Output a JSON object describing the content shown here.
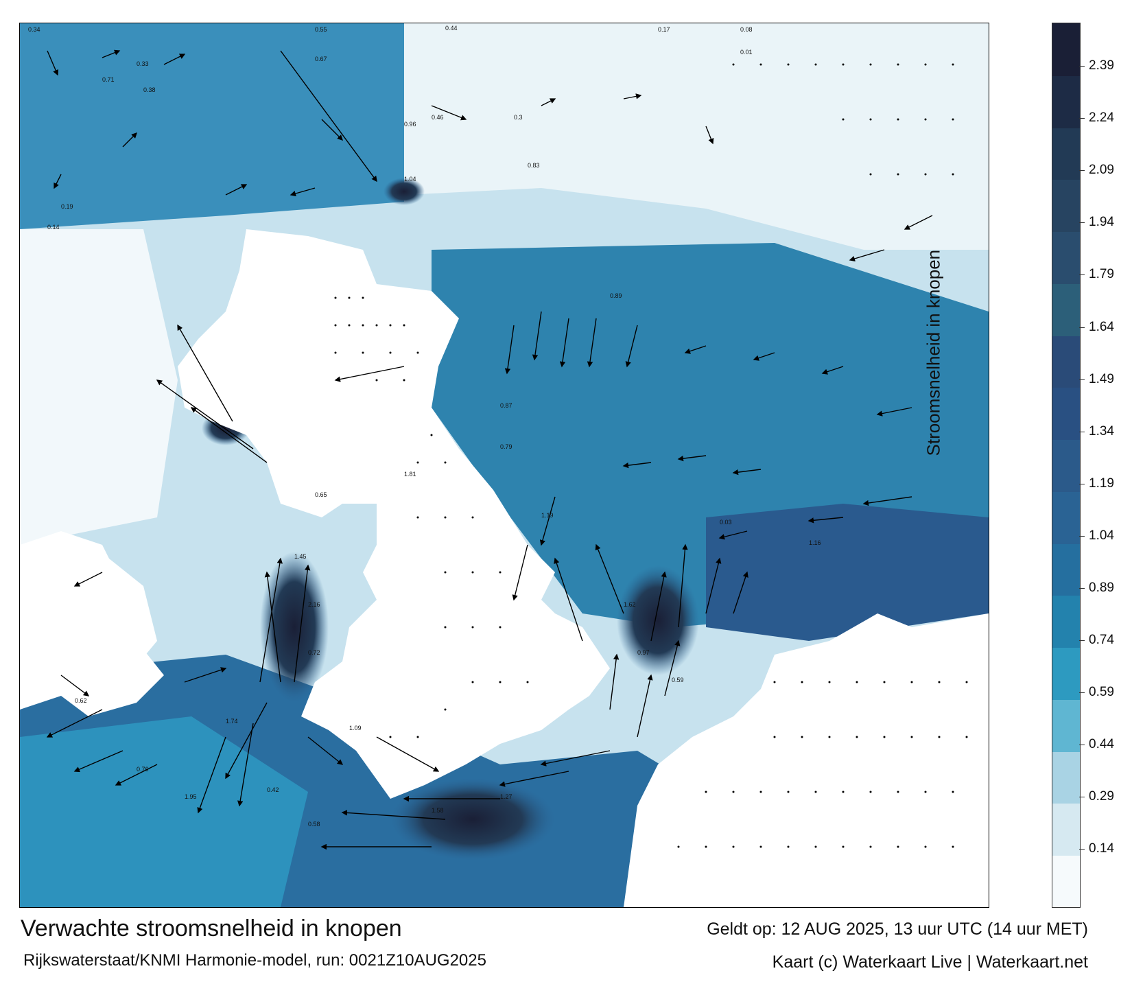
{
  "title": "Verwachte stroomsnelheid in knopen",
  "subtitle": "Rijkswaterstaat/KNMI Harmonie-model, run: 0021Z10AUG2025",
  "valid_time": "Geldt op: 12 AUG 2025, 13 uur UTC (14 uur MET)",
  "credit": "Kaart (c) Waterkaart Live | Waterkaart.net",
  "legend": {
    "title": "Stroomsnelheid in knopen",
    "ticks": [
      "2.39",
      "2.24",
      "2.09",
      "1.94",
      "1.79",
      "1.64",
      "1.49",
      "1.34",
      "1.19",
      "1.04",
      "0.89",
      "0.74",
      "0.59",
      "0.44",
      "0.29",
      "0.14"
    ],
    "colors": [
      "#f6fafc",
      "#d6e9f1",
      "#a9d3e4",
      "#5fb6d2",
      "#2d9ac0",
      "#2382ad",
      "#256f9f",
      "#2a6394",
      "#2b5a8a",
      "#295082",
      "#2a4b78",
      "#2c5f79",
      "#2a4d6e",
      "#274461",
      "#223a55",
      "#1d2b45",
      "#1a1f36"
    ]
  },
  "map": {
    "sample_labels": [
      "0.34",
      "0.55",
      "0.44",
      "0.17",
      "0.08",
      "0.01",
      "0.33",
      "0.38",
      "0.67",
      "0.71",
      "0.19",
      "0.14",
      "0.3",
      "0.46",
      "0.83",
      "0.96",
      "1.04",
      "0.89",
      "1.16",
      "1.19",
      "0.87",
      "0.79",
      "0.65",
      "1.45",
      "2.16",
      "1.62",
      "0.97",
      "0.59",
      "0.72",
      "1.81",
      "1.58",
      "1.27",
      "0.62",
      "0.76",
      "1.74",
      "1.95",
      "0.58",
      "0.42",
      "1.09",
      "0.03"
    ]
  }
}
